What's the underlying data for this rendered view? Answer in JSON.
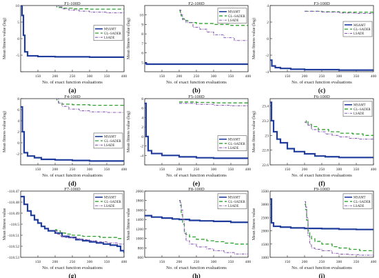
{
  "common": {
    "xlabel": "No. of exact function evaluations",
    "ylabel": "Mean fitness value (log)",
    "ylabel_plain": "Mean fitness value"
  },
  "colors": {
    "MSAMT": "#1f3c9c",
    "GL-SADER": "#2ca02c",
    "LSADE": "#8a5bb5",
    "axis": "#222222"
  },
  "chart_data": [
    {
      "type": "line",
      "title": "F1-100D",
      "panel_label": "(a)",
      "ylabel_key": "ylabel",
      "xlim": [
        100,
        400
      ],
      "ylim": [
        -10,
        10
      ],
      "xticks": [
        150,
        200,
        250,
        300,
        350,
        400
      ],
      "yticks": [
        -10,
        -5,
        0,
        5,
        10
      ],
      "ytick_labels": [
        "",
        "-5",
        "0",
        "5",
        "10"
      ],
      "legend": "center-right",
      "legend_offset": 0.3,
      "series": [
        {
          "name": "MSAMT",
          "x": [
            100,
            104,
            108,
            112,
            120,
            150,
            200,
            300,
            400
          ],
          "y": [
            10,
            7,
            1,
            -4,
            -5.2,
            -5.4,
            -5.5,
            -5.6,
            -5.6
          ]
        },
        {
          "name": "GL~SADER",
          "x": [
            200,
            205,
            210,
            220,
            250,
            300,
            350,
            400
          ],
          "y": [
            10,
            9.6,
            9.4,
            9.2,
            9.0,
            8.9,
            8.9,
            8.9
          ]
        },
        {
          "name": "LSADE",
          "x": [
            200,
            210,
            220,
            240,
            270,
            300,
            350,
            400
          ],
          "y": [
            10,
            9.6,
            9.0,
            8.6,
            8.3,
            8.0,
            7.8,
            7.7
          ]
        }
      ]
    },
    {
      "type": "line",
      "title": "F2-100D",
      "panel_label": "(b)",
      "ylabel_key": "ylabel",
      "xlim": [
        100,
        400
      ],
      "ylim": [
        4,
        11
      ],
      "xticks": [
        150,
        200,
        250,
        300,
        350,
        400
      ],
      "yticks": [
        5,
        6,
        7,
        8,
        9,
        10
      ],
      "ytick_labels": [
        "5",
        "6",
        "7",
        "8",
        "9",
        "10"
      ],
      "legend": "top-right",
      "legend_offset": 0.04,
      "series": [
        {
          "name": "MSAMT",
          "x": [
            100,
            105,
            110,
            400
          ],
          "y": [
            4.9,
            4.8,
            4.8,
            4.8
          ]
        },
        {
          "name": "GL~SADER",
          "x": [
            200,
            203,
            206,
            210,
            215,
            225,
            250,
            300,
            350,
            400
          ],
          "y": [
            10.5,
            10.2,
            9.9,
            9.6,
            9.4,
            9.2,
            9.1,
            9.0,
            8.9,
            8.9
          ]
        },
        {
          "name": "LSADE",
          "x": [
            200,
            205,
            210,
            220,
            240,
            260,
            280,
            300,
            330,
            360,
            400
          ],
          "y": [
            10.5,
            10.0,
            9.5,
            9.2,
            8.7,
            8.5,
            8.2,
            7.9,
            7.6,
            7.3,
            7.2
          ]
        }
      ]
    },
    {
      "type": "line",
      "title": "F3-100D",
      "panel_label": "(c)",
      "ylabel_key": "ylabel",
      "xlim": [
        100,
        400
      ],
      "ylim": [
        -4,
        4
      ],
      "xticks": [
        150,
        200,
        250,
        300,
        350,
        400
      ],
      "yticks": [
        -4,
        -2,
        0,
        2,
        4
      ],
      "ytick_labels": [
        "-4",
        "-2",
        "0",
        "2",
        "4"
      ],
      "legend": "center-right",
      "legend_offset": 0.24,
      "series": [
        {
          "name": "MSAMT",
          "x": [
            100,
            105,
            115,
            130,
            160,
            200,
            300,
            400
          ],
          "y": [
            -2.6,
            -3.3,
            -3.5,
            -3.6,
            -3.7,
            -3.75,
            -3.8,
            -3.85
          ]
        },
        {
          "name": "GL~SADER",
          "x": [
            200,
            250,
            300,
            350,
            400
          ],
          "y": [
            3.3,
            3.25,
            3.2,
            3.2,
            3.2
          ]
        },
        {
          "name": "LSADE",
          "x": [
            200,
            250,
            300,
            350,
            400
          ],
          "y": [
            3.3,
            3.2,
            3.1,
            3.05,
            3.0
          ]
        }
      ]
    },
    {
      "type": "line",
      "title": "F4-100D",
      "panel_label": "(d)",
      "ylabel_key": "ylabel",
      "xlim": [
        100,
        400
      ],
      "ylim": [
        -4,
        8
      ],
      "xticks": [
        150,
        200,
        250,
        300,
        350,
        400
      ],
      "yticks": [
        -2,
        0,
        2,
        4,
        6,
        8
      ],
      "ytick_labels": [
        "-2",
        "0",
        "2",
        "4",
        "6",
        "8"
      ],
      "legend": "center-right",
      "legend_offset": 0.52,
      "series": [
        {
          "name": "MSAMT",
          "x": [
            100,
            105,
            110,
            120,
            140,
            160,
            200,
            250,
            300,
            400
          ],
          "y": [
            6.5,
            2.0,
            -1.8,
            -2.4,
            -2.7,
            -3.0,
            -3.1,
            -3.2,
            -3.3,
            -3.3
          ]
        },
        {
          "name": "GL~SADER",
          "x": [
            200,
            205,
            210,
            220,
            250,
            300,
            400
          ],
          "y": [
            8,
            7.5,
            7.2,
            7.0,
            6.9,
            6.8,
            6.8
          ]
        },
        {
          "name": "LSADE",
          "x": [
            200,
            210,
            220,
            240,
            270,
            300,
            350,
            400
          ],
          "y": [
            8,
            7.2,
            6.6,
            6.1,
            5.8,
            5.6,
            5.5,
            5.5
          ]
        }
      ]
    },
    {
      "type": "line",
      "title": "F5-100D",
      "panel_label": "(e)",
      "ylabel_key": "ylabel",
      "xlim": [
        100,
        400
      ],
      "ylim": [
        -6,
        8
      ],
      "xticks": [
        150,
        200,
        250,
        300,
        350,
        400
      ],
      "yticks": [
        -6,
        -4,
        -2,
        0,
        2,
        4,
        6,
        8
      ],
      "ytick_labels": [
        "",
        "-4",
        "-2",
        "0",
        "2",
        "4",
        "6",
        "8"
      ],
      "legend": "center-right",
      "legend_offset": 0.56,
      "series": [
        {
          "name": "MSAMT",
          "x": [
            100,
            104,
            110,
            120,
            150,
            200,
            250,
            300,
            400
          ],
          "y": [
            7,
            0,
            -3,
            -3.6,
            -4.0,
            -4.3,
            -4.5,
            -4.6,
            -4.7
          ]
        },
        {
          "name": "GL~SADER",
          "x": [
            200,
            250,
            300,
            400
          ],
          "y": [
            7.3,
            7.2,
            7.1,
            7.0
          ]
        },
        {
          "name": "LSADE",
          "x": [
            200,
            250,
            300,
            350,
            400
          ],
          "y": [
            7.0,
            6.8,
            6.6,
            6.5,
            6.5
          ]
        }
      ]
    },
    {
      "type": "line",
      "title": "F6-100D",
      "panel_label": "(f)",
      "ylabel_key": "ylabel",
      "xlim": [
        100,
        400
      ],
      "ylim": [
        22.6,
        23.5
      ],
      "xticks": [
        150,
        200,
        250,
        300,
        350,
        400
      ],
      "yticks": [
        22.6,
        22.8,
        23,
        23.2,
        23.4
      ],
      "ytick_labels": [
        "22.6",
        "22.8",
        "23",
        "23.2",
        "23.4"
      ],
      "legend": "top-right",
      "legend_offset": 0.04,
      "series": [
        {
          "name": "MSAMT",
          "x": [
            100,
            104,
            110,
            120,
            130,
            150,
            170,
            200,
            230,
            260,
            300,
            350,
            400
          ],
          "y": [
            23.45,
            23.2,
            23.05,
            22.95,
            22.9,
            22.82,
            22.78,
            22.75,
            22.72,
            22.71,
            22.7,
            22.7,
            22.7
          ]
        },
        {
          "name": "GL~SADER",
          "x": [
            200,
            205,
            210,
            220,
            240,
            270,
            300,
            340,
            370,
            400
          ],
          "y": [
            23.18,
            23.2,
            23.15,
            23.12,
            23.08,
            23.05,
            23.03,
            23.02,
            23.0,
            23.0
          ]
        },
        {
          "name": "LSADE",
          "x": [
            200,
            205,
            210,
            220,
            240,
            260,
            280,
            300,
            330,
            360,
            400
          ],
          "y": [
            23.18,
            23.17,
            23.14,
            23.08,
            23.05,
            23.02,
            23.0,
            22.98,
            22.96,
            22.95,
            22.92
          ]
        }
      ]
    },
    {
      "type": "line",
      "title": "F7-100D",
      "panel_label": "(g)",
      "ylabel_key": "ylabel_plain",
      "xlim": [
        100,
        400
      ],
      "ylim": [
        -118.53,
        -118.47
      ],
      "xticks": [
        150,
        200,
        250,
        300,
        350,
        400
      ],
      "yticks": [
        -118.53,
        -118.52,
        -118.51,
        -118.5,
        -118.49,
        -118.48,
        -118.47
      ],
      "ytick_labels": [
        "-118.53",
        "-118.52",
        "-118.51",
        "-118.5",
        "-118.49",
        "-118.48",
        "-118.47"
      ],
      "legend": "top-right",
      "legend_offset": 0.04,
      "series": [
        {
          "name": "MSAMT",
          "x": [
            100,
            110,
            120,
            130,
            140,
            150,
            160,
            170,
            180,
            200,
            220,
            240,
            260,
            280,
            300,
            320,
            340,
            360,
            380,
            390,
            400
          ],
          "y": [
            -118.475,
            -118.482,
            -118.488,
            -118.492,
            -118.496,
            -118.499,
            -118.502,
            -118.504,
            -118.506,
            -118.508,
            -118.511,
            -118.512,
            -118.514,
            -118.515,
            -118.516,
            -118.517,
            -118.518,
            -118.519,
            -118.52,
            -118.524,
            -118.526
          ]
        },
        {
          "name": "GL~SADER",
          "x": [
            200,
            205,
            215,
            230,
            250,
            280,
            300,
            330,
            360,
            380,
            400
          ],
          "y": [
            -118.505,
            -118.506,
            -118.508,
            -118.509,
            -118.51,
            -118.511,
            -118.511,
            -118.512,
            -118.512,
            -118.513,
            -118.513
          ]
        },
        {
          "name": "LSADE",
          "x": [
            200,
            205,
            215,
            230,
            250,
            270,
            300,
            320,
            350,
            380,
            400
          ],
          "y": [
            -118.506,
            -118.509,
            -118.511,
            -118.512,
            -118.513,
            -118.514,
            -118.515,
            -118.516,
            -118.517,
            -118.518,
            -118.518
          ]
        }
      ]
    },
    {
      "type": "line",
      "title": "F8-100D",
      "panel_label": "(h)",
      "ylabel_key": "ylabel_plain",
      "xlim": [
        100,
        400
      ],
      "ylim": [
        600,
        2000
      ],
      "xticks": [
        150,
        200,
        250,
        300,
        350,
        400
      ],
      "yticks": [
        600,
        800,
        1000,
        1200,
        1400,
        1600,
        1800,
        2000
      ],
      "ytick_labels": [
        "600",
        "800",
        "1000",
        "1200",
        "1400",
        "1600",
        "1800",
        "2000"
      ],
      "legend": "top-right",
      "legend_offset": 0.04,
      "series": [
        {
          "name": "MSAMT",
          "x": [
            100,
            120,
            150,
            180,
            200,
            230,
            260,
            300,
            350,
            400
          ],
          "y": [
            1480,
            1450,
            1430,
            1410,
            1400,
            1380,
            1370,
            1360,
            1340,
            1330
          ]
        },
        {
          "name": "GL~SADER",
          "x": [
            200,
            203,
            206,
            210,
            215,
            220,
            230,
            250,
            280,
            300,
            330,
            360,
            400
          ],
          "y": [
            1800,
            1700,
            1500,
            1300,
            1150,
            1080,
            1030,
            980,
            950,
            930,
            900,
            880,
            870
          ]
        },
        {
          "name": "LSADE",
          "x": [
            200,
            203,
            206,
            210,
            215,
            220,
            230,
            250,
            280,
            300,
            330,
            360,
            400
          ],
          "y": [
            1800,
            1750,
            1600,
            1400,
            1100,
            950,
            880,
            820,
            780,
            740,
            700,
            670,
            650
          ]
        }
      ]
    },
    {
      "type": "line",
      "title": "F9-100D",
      "panel_label": "(i)",
      "ylabel_key": "ylabel_plain",
      "xlim": [
        100,
        400
      ],
      "ylim": [
        1000,
        3500
      ],
      "xticks": [
        150,
        200,
        250,
        300,
        350,
        400
      ],
      "yticks": [
        1000,
        1500,
        2000,
        2500,
        3000,
        3500
      ],
      "ytick_labels": [
        "1000",
        "1500",
        "2000",
        "2500",
        "3000",
        "3500"
      ],
      "legend": "top-right",
      "legend_offset": 0.04,
      "series": [
        {
          "name": "MSAMT",
          "x": [
            100,
            104,
            110,
            130,
            160,
            200,
            250,
            300,
            350,
            400
          ],
          "y": [
            3200,
            2300,
            2170,
            2140,
            2110,
            2090,
            2080,
            2060,
            2050,
            2040
          ]
        },
        {
          "name": "GL~SADER",
          "x": [
            200,
            203,
            206,
            210,
            215,
            220,
            230,
            250,
            280,
            300,
            330,
            360,
            400
          ],
          "y": [
            3000,
            2800,
            2400,
            2000,
            1800,
            1700,
            1600,
            1500,
            1400,
            1350,
            1300,
            1250,
            1200
          ]
        },
        {
          "name": "LSADE",
          "x": [
            200,
            203,
            206,
            210,
            215,
            220,
            230,
            250,
            280,
            300,
            330,
            360,
            400
          ],
          "y": [
            3100,
            2900,
            2500,
            1800,
            1500,
            1350,
            1300,
            1250,
            1150,
            1120,
            1100,
            1080,
            1050
          ]
        }
      ]
    }
  ]
}
